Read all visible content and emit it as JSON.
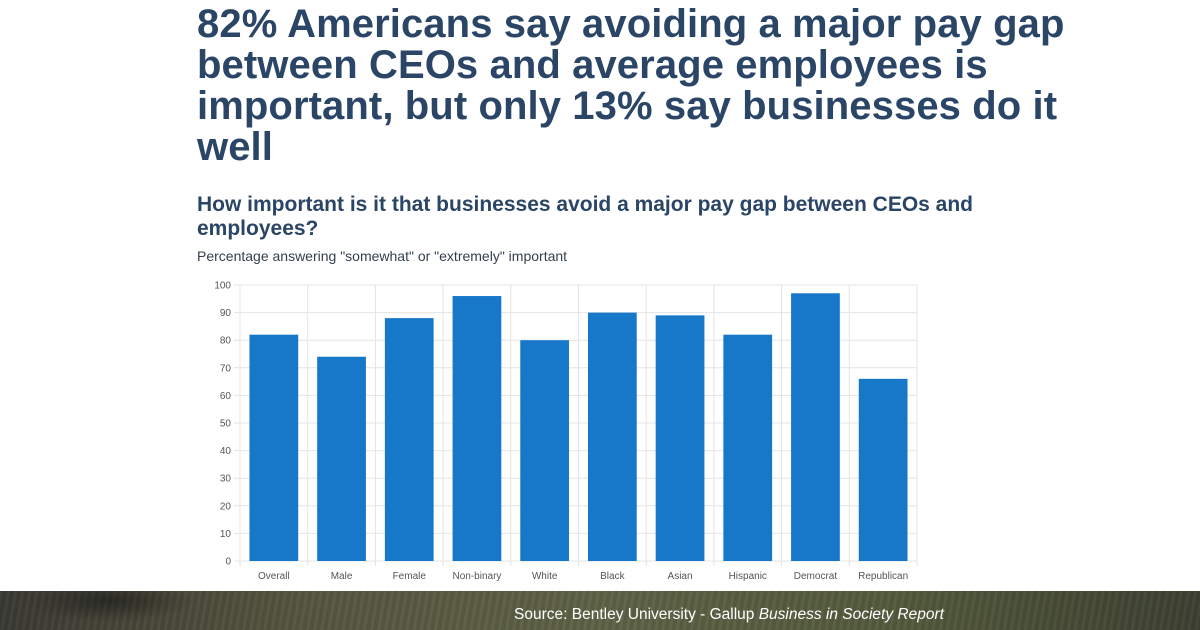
{
  "headline": "82% Americans say avoiding a major pay gap between CEOs and average employees is important, but only 13% say businesses do it well",
  "chart_data": {
    "type": "bar",
    "title": "How important is it that businesses avoid a major pay gap between CEOs and employees?",
    "subtitle": "Percentage answering \"somewhat\" or \"extremely\" important",
    "categories": [
      "Overall",
      "Male",
      "Female",
      "Non-binary",
      "White",
      "Black",
      "Asian",
      "Hispanic",
      "Democrat",
      "Republican"
    ],
    "values": [
      82,
      74,
      88,
      96,
      80,
      90,
      89,
      82,
      97,
      66
    ],
    "ylim": [
      0,
      100
    ],
    "yticks": [
      0,
      10,
      20,
      30,
      40,
      50,
      60,
      70,
      80,
      90,
      100
    ],
    "grid": true,
    "bar_color": "#1777c9"
  },
  "footer": {
    "source_prefix": "Source: Bentley University - Gallup ",
    "source_report": "Business in Society Report"
  }
}
